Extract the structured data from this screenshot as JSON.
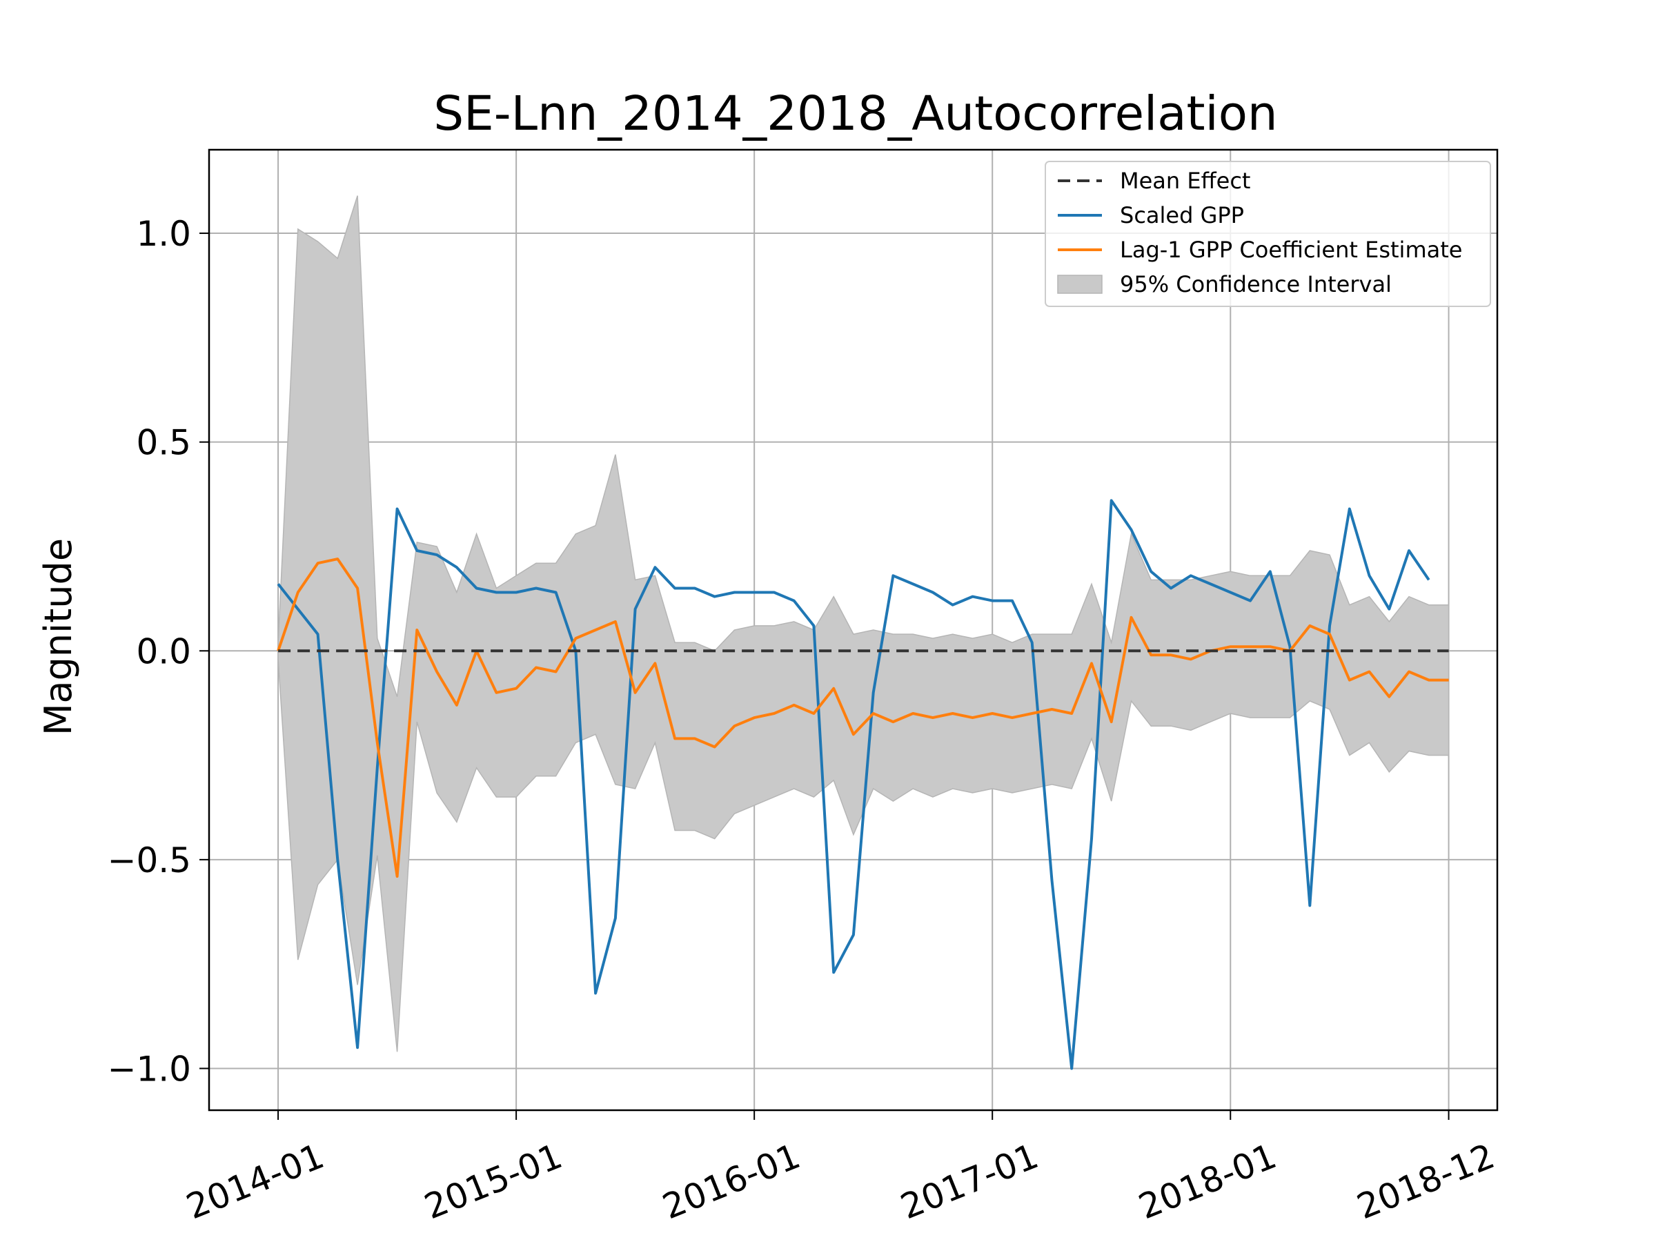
{
  "chart_data": {
    "type": "line",
    "title": "SE-Lnn_2014_2018_Autocorrelation",
    "xlabel": "",
    "ylabel": "Magnitude",
    "x_ticks": [
      "2014-01",
      "2015-01",
      "2016-01",
      "2017-01",
      "2018-01",
      "2018-12"
    ],
    "y_ticks": [
      "−1.0",
      "−0.5",
      "0.0",
      "0.5",
      "1.0"
    ],
    "y_tick_values": [
      -1.0,
      -0.5,
      0.0,
      0.5,
      1.0
    ],
    "xlim": [
      "2013-10",
      "2019-03"
    ],
    "ylim": [
      -1.1,
      1.2
    ],
    "grid": true,
    "legend_position": "top-right",
    "legend": [
      {
        "label": "Mean Effect",
        "kind": "dashed-line",
        "color": "#333333"
      },
      {
        "label": "Scaled GPP",
        "kind": "line",
        "color": "#1f77b4"
      },
      {
        "label": "Lag-1 GPP Coefficient Estimate",
        "kind": "line",
        "color": "#ff7f0e"
      },
      {
        "label": "95% Confidence Interval",
        "kind": "band",
        "color": "#bbbbbb"
      }
    ],
    "x": [
      "2014-01",
      "2014-02",
      "2014-03",
      "2014-04",
      "2014-05",
      "2014-06",
      "2014-07",
      "2014-08",
      "2014-09",
      "2014-10",
      "2014-11",
      "2014-12",
      "2015-01",
      "2015-02",
      "2015-03",
      "2015-04",
      "2015-05",
      "2015-06",
      "2015-07",
      "2015-08",
      "2015-09",
      "2015-10",
      "2015-11",
      "2015-12",
      "2016-01",
      "2016-02",
      "2016-03",
      "2016-04",
      "2016-05",
      "2016-06",
      "2016-07",
      "2016-08",
      "2016-09",
      "2016-10",
      "2016-11",
      "2016-12",
      "2017-01",
      "2017-02",
      "2017-03",
      "2017-04",
      "2017-05",
      "2017-06",
      "2017-07",
      "2017-08",
      "2017-09",
      "2017-10",
      "2017-11",
      "2017-12",
      "2018-01",
      "2018-02",
      "2018-03",
      "2018-04",
      "2018-05",
      "2018-06",
      "2018-07",
      "2018-08",
      "2018-09",
      "2018-10",
      "2018-11",
      "2018-12"
    ],
    "series": [
      {
        "name": "Mean Effect",
        "color": "#333333",
        "style": "dashed",
        "values": [
          0,
          0,
          0,
          0,
          0,
          0,
          0,
          0,
          0,
          0,
          0,
          0,
          0,
          0,
          0,
          0,
          0,
          0,
          0,
          0,
          0,
          0,
          0,
          0,
          0,
          0,
          0,
          0,
          0,
          0,
          0,
          0,
          0,
          0,
          0,
          0,
          0,
          0,
          0,
          0,
          0,
          0,
          0,
          0,
          0,
          0,
          0,
          0,
          0,
          0,
          0,
          0,
          0,
          0,
          0,
          0,
          0,
          0,
          0,
          0
        ]
      },
      {
        "name": "Scaled GPP",
        "color": "#1f77b4",
        "style": "solid",
        "values": [
          0.16,
          0.1,
          0.04,
          -0.5,
          -0.95,
          -0.28,
          0.34,
          0.24,
          0.23,
          0.2,
          0.15,
          0.14,
          0.14,
          0.15,
          0.14,
          0.0,
          -0.82,
          -0.64,
          0.1,
          0.2,
          0.15,
          0.15,
          0.13,
          0.14,
          0.14,
          0.14,
          0.12,
          0.06,
          -0.77,
          -0.68,
          -0.1,
          0.18,
          0.16,
          0.14,
          0.11,
          0.13,
          0.12,
          0.12,
          0.02,
          -0.55,
          -1.0,
          -0.45,
          0.36,
          0.29,
          0.19,
          0.15,
          0.18,
          0.16,
          0.14,
          0.12,
          0.19,
          0.01,
          -0.61,
          0.06,
          0.34,
          0.18,
          0.1,
          0.24,
          0.17,
          null
        ]
      },
      {
        "name": "Lag-1 GPP Coefficient Estimate",
        "color": "#ff7f0e",
        "style": "solid",
        "values": [
          0.0,
          0.14,
          0.21,
          0.22,
          0.15,
          -0.22,
          -0.54,
          0.05,
          -0.05,
          -0.13,
          0.0,
          -0.1,
          -0.09,
          -0.04,
          -0.05,
          0.03,
          0.05,
          0.07,
          -0.1,
          -0.03,
          -0.21,
          -0.21,
          -0.23,
          -0.18,
          -0.16,
          -0.15,
          -0.13,
          -0.15,
          -0.09,
          -0.2,
          -0.15,
          -0.17,
          -0.15,
          -0.16,
          -0.15,
          -0.16,
          -0.15,
          -0.16,
          -0.15,
          -0.14,
          -0.15,
          -0.03,
          -0.17,
          0.08,
          -0.01,
          -0.01,
          -0.02,
          0.0,
          0.01,
          0.01,
          0.01,
          0.0,
          0.06,
          0.04,
          -0.07,
          -0.05,
          -0.11,
          -0.05,
          -0.07,
          -0.07
        ]
      }
    ],
    "confidence_band": {
      "name": "95% Confidence Interval",
      "color": "#bbbbbb",
      "upper": [
        0.02,
        1.01,
        0.98,
        0.94,
        1.09,
        0.03,
        -0.11,
        0.26,
        0.25,
        0.14,
        0.28,
        0.15,
        0.18,
        0.21,
        0.21,
        0.28,
        0.3,
        0.47,
        0.17,
        0.18,
        0.02,
        0.02,
        0.0,
        0.05,
        0.06,
        0.06,
        0.07,
        0.05,
        0.13,
        0.04,
        0.05,
        0.04,
        0.04,
        0.03,
        0.04,
        0.03,
        0.04,
        0.02,
        0.04,
        0.04,
        0.04,
        0.16,
        0.02,
        0.28,
        0.17,
        0.17,
        0.17,
        0.18,
        0.19,
        0.18,
        0.18,
        0.18,
        0.24,
        0.23,
        0.11,
        0.13,
        0.07,
        0.13,
        0.11,
        0.11
      ],
      "lower": [
        -0.02,
        -0.74,
        -0.56,
        -0.5,
        -0.8,
        -0.49,
        -0.96,
        -0.17,
        -0.34,
        -0.41,
        -0.28,
        -0.35,
        -0.35,
        -0.3,
        -0.3,
        -0.22,
        -0.2,
        -0.32,
        -0.33,
        -0.22,
        -0.43,
        -0.43,
        -0.45,
        -0.39,
        -0.37,
        -0.35,
        -0.33,
        -0.35,
        -0.31,
        -0.44,
        -0.33,
        -0.36,
        -0.33,
        -0.35,
        -0.33,
        -0.34,
        -0.33,
        -0.34,
        -0.33,
        -0.32,
        -0.33,
        -0.21,
        -0.36,
        -0.12,
        -0.18,
        -0.18,
        -0.19,
        -0.17,
        -0.15,
        -0.16,
        -0.16,
        -0.16,
        -0.12,
        -0.14,
        -0.25,
        -0.22,
        -0.29,
        -0.24,
        -0.25,
        -0.25
      ]
    }
  }
}
